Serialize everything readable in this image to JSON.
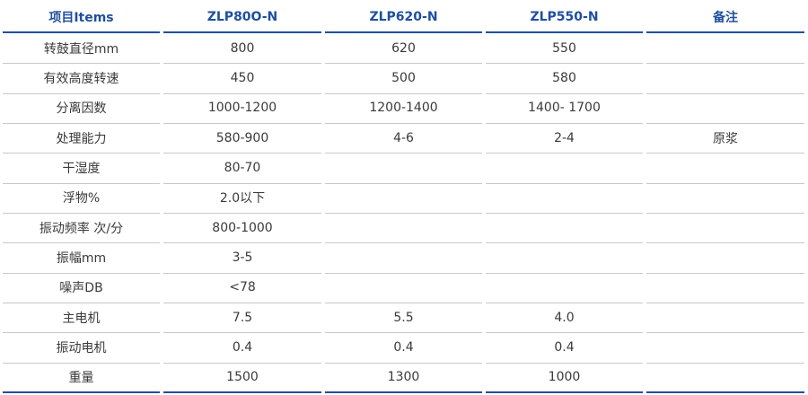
{
  "table": {
    "header": [
      "项目Items",
      "ZLP80O-N",
      "ZLP620-N",
      "ZLP550-N",
      "备注"
    ],
    "rows": [
      [
        "转鼓直径mm",
        "800",
        "620",
        "550",
        null
      ],
      [
        "有效高度转速",
        "450",
        "500",
        "580",
        null
      ],
      [
        "分离因数",
        "1000-1200",
        "1200-1400",
        "1400- 1700",
        null
      ],
      [
        "处理能力",
        "580-900",
        "4-6",
        "2-4",
        "原浆"
      ],
      [
        "干湿度",
        "80-70",
        null,
        null,
        null
      ],
      [
        "浮物%",
        "2.0以下",
        null,
        null,
        null
      ],
      [
        "振动频率 次/分",
        "800-1000",
        null,
        null,
        null
      ],
      [
        "振幅mm",
        "3-5",
        null,
        null,
        null
      ],
      [
        "噪声DB",
        "<78",
        null,
        null,
        null
      ],
      [
        "主电机",
        "7.5",
        "5.5",
        "4.0",
        null
      ],
      [
        "振动电机",
        "0.4",
        "0.4",
        "0.4",
        null
      ],
      [
        "重量",
        "1500",
        "1300",
        "1000",
        null
      ]
    ]
  }
}
